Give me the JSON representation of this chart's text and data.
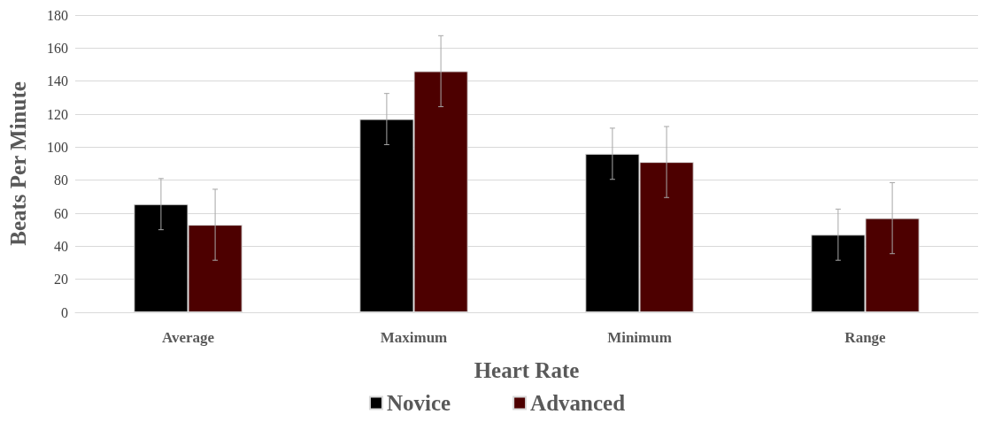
{
  "chart_data": {
    "type": "bar",
    "xlabel": "Heart Rate",
    "ylabel": "Beats Per Minute",
    "categories": [
      "Average",
      "Maximum",
      "Minimum",
      "Range"
    ],
    "series": [
      {
        "name": "Novice",
        "color": "#000000",
        "values": [
          65.5,
          117,
          96,
          47
        ],
        "errors": [
          15.5,
          15.5,
          15.5,
          15.5
        ]
      },
      {
        "name": "Advanced",
        "color": "#4d0000",
        "values": [
          53,
          146,
          91,
          57
        ],
        "errors": [
          21.5,
          21.5,
          21.5,
          21.5
        ]
      }
    ],
    "ylim": [
      0,
      180
    ],
    "yticks": [
      0,
      20,
      40,
      60,
      80,
      100,
      120,
      140,
      160,
      180
    ],
    "grid": "y",
    "legend": "bottom"
  }
}
